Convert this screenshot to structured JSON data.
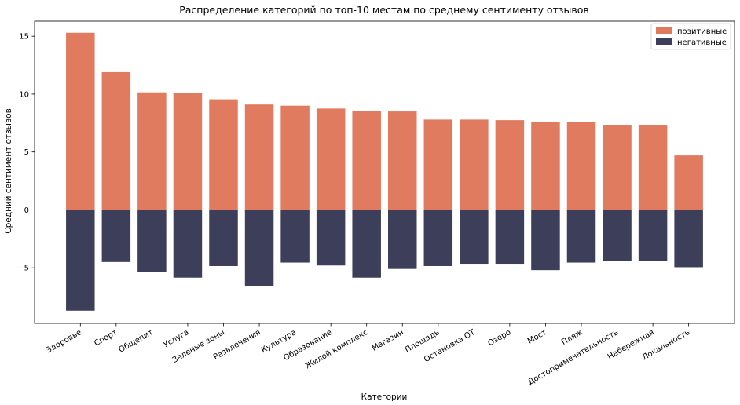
{
  "chart_data": {
    "type": "bar",
    "title": "Распределение категорий по топ-10 местам по среднему сентименту отзывов",
    "xlabel": "Категории",
    "ylabel": "Средний сентимент отзывов",
    "ylim": [
      -9.8,
      16.3
    ],
    "yticks": [
      -5,
      0,
      5,
      10,
      15
    ],
    "legend_position": "top-right",
    "categories": [
      "Здоровье",
      "Спорт",
      "Общепит",
      "Услуга",
      "Зеленые зоны",
      "Развлечения",
      "Культура",
      "Образование",
      "Жилой комплекс",
      "Магазин",
      "Площадь",
      "Остановка ОТ",
      "Озеро",
      "Мост",
      "Пляж",
      "Достопримечательность",
      "Набережная",
      "Локальность"
    ],
    "series": [
      {
        "name": "позитивные",
        "color": "#e07b60",
        "values": [
          15.3,
          11.9,
          10.15,
          10.1,
          9.55,
          9.1,
          9.0,
          8.75,
          8.55,
          8.5,
          7.8,
          7.8,
          7.75,
          7.6,
          7.6,
          7.35,
          7.35,
          4.7
        ]
      },
      {
        "name": "негативные",
        "color": "#3d3f5a",
        "values": [
          -8.7,
          -4.5,
          -5.35,
          -5.85,
          -4.85,
          -6.6,
          -4.55,
          -4.8,
          -5.85,
          -5.1,
          -4.85,
          -4.65,
          -4.65,
          -5.2,
          -4.55,
          -4.4,
          -4.4,
          -4.95
        ]
      }
    ]
  }
}
